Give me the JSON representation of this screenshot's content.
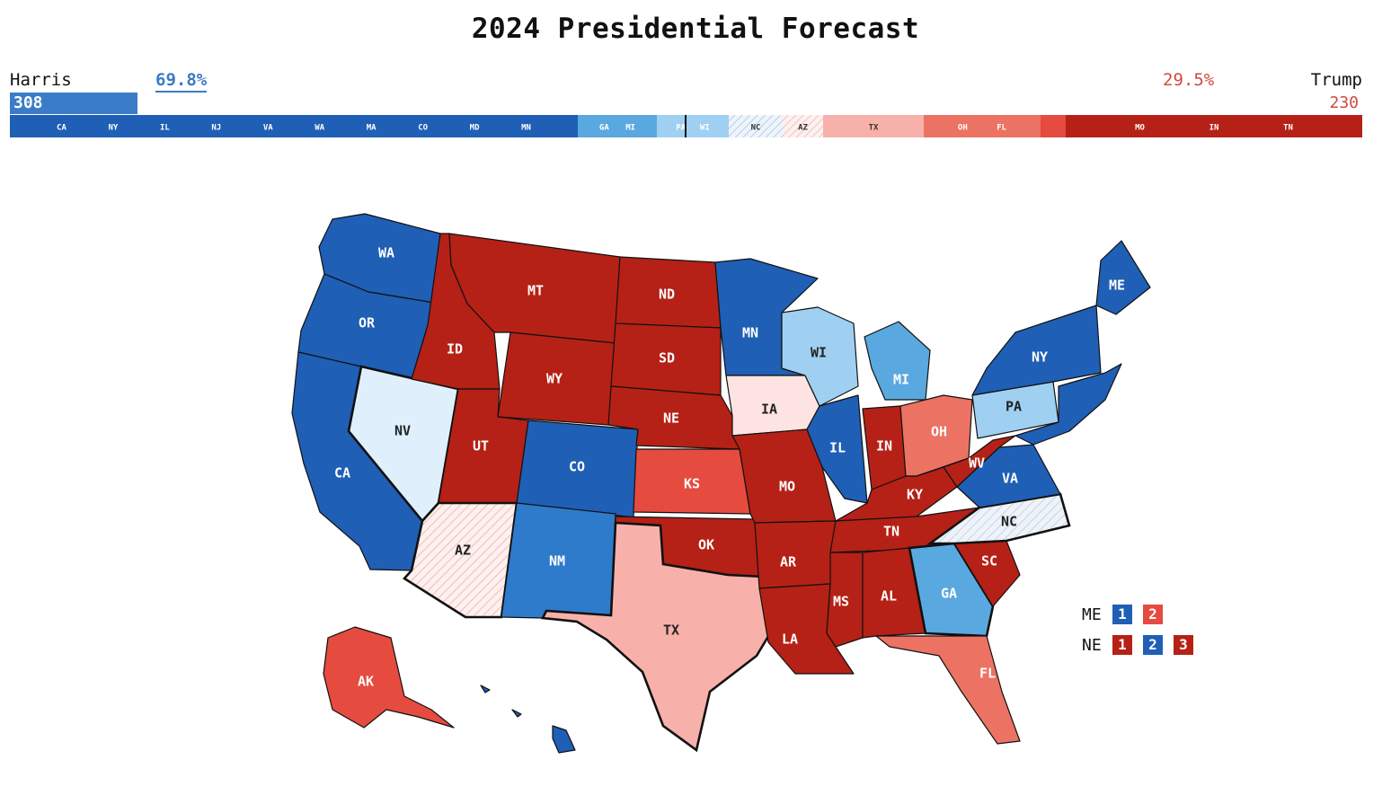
{
  "title": "2024 Presidential Forecast",
  "harris": {
    "name": "Harris",
    "pct": "69.8%",
    "ev": "308"
  },
  "trump": {
    "name": "Trump",
    "pct": "29.5%",
    "ev": "230"
  },
  "colors": {
    "safe_d": "#1f5fb5",
    "likely_d": "#2e7bcc",
    "lean_d": "#5aa8e0",
    "tilt_d": "#9fd0f2",
    "toss_d": "#dff0fc",
    "toss_r": "#fde4e2",
    "lean_r": "#f7b1aa",
    "likely_r": "#ec7264",
    "likely_r2": "#e64b3f",
    "safe_r": "#b52116"
  },
  "ev_strip": [
    {
      "w": 632,
      "c": "safe_d",
      "labels": [
        "CA",
        "NY",
        "IL",
        "NJ",
        "VA",
        "WA",
        "MA",
        "CO",
        "MD",
        "MN"
      ]
    },
    {
      "w": 88,
      "c": "lean_d",
      "labels": [
        "GA",
        "MI"
      ]
    },
    {
      "w": 80,
      "c": "tilt_d",
      "labels": [
        "PA",
        "WI"
      ]
    },
    {
      "w": 60,
      "c": "toss_d",
      "labels": [
        "NC"
      ]
    },
    {
      "w": 45,
      "c": "toss_r",
      "labels": [
        "AZ"
      ]
    },
    {
      "w": 112,
      "c": "lean_r",
      "labels": [
        "TX"
      ]
    },
    {
      "w": 130,
      "c": "likely_r",
      "labels": [
        "OH",
        "FL"
      ]
    },
    {
      "w": 28,
      "c": "likely_r2",
      "labels": []
    },
    {
      "w": 330,
      "c": "safe_r",
      "labels": [
        "MO",
        "IN",
        "TN"
      ]
    }
  ],
  "states": {
    "WA": {
      "rating": "safe_d"
    },
    "OR": {
      "rating": "safe_d"
    },
    "CA": {
      "rating": "safe_d"
    },
    "NV": {
      "rating": "toss_d"
    },
    "ID": {
      "rating": "safe_r"
    },
    "MT": {
      "rating": "safe_r"
    },
    "WY": {
      "rating": "safe_r"
    },
    "UT": {
      "rating": "safe_r"
    },
    "CO": {
      "rating": "safe_d"
    },
    "AZ": {
      "rating": "toss_r"
    },
    "NM": {
      "rating": "likely_d"
    },
    "ND": {
      "rating": "safe_r"
    },
    "SD": {
      "rating": "safe_r"
    },
    "NE": {
      "rating": "safe_r"
    },
    "KS": {
      "rating": "likely_r2"
    },
    "OK": {
      "rating": "safe_r"
    },
    "TX": {
      "rating": "lean_r"
    },
    "MN": {
      "rating": "safe_d"
    },
    "IA": {
      "rating": "toss_r"
    },
    "MO": {
      "rating": "safe_r"
    },
    "AR": {
      "rating": "safe_r"
    },
    "LA": {
      "rating": "safe_r"
    },
    "WI": {
      "rating": "tilt_d"
    },
    "IL": {
      "rating": "safe_d"
    },
    "MI": {
      "rating": "lean_d"
    },
    "IN": {
      "rating": "safe_r"
    },
    "OH": {
      "rating": "likely_r"
    },
    "KY": {
      "rating": "safe_r"
    },
    "TN": {
      "rating": "safe_r"
    },
    "MS": {
      "rating": "safe_r"
    },
    "AL": {
      "rating": "safe_r"
    },
    "GA": {
      "rating": "lean_d"
    },
    "FL": {
      "rating": "likely_r"
    },
    "SC": {
      "rating": "safe_r"
    },
    "NC": {
      "rating": "toss_d"
    },
    "VA": {
      "rating": "safe_d"
    },
    "WV": {
      "rating": "safe_r"
    },
    "PA": {
      "rating": "tilt_d"
    },
    "NY": {
      "rating": "safe_d"
    },
    "ME": {
      "rating": "safe_d"
    },
    "AK": {
      "rating": "likely_r2"
    },
    "HI": {
      "rating": "safe_d"
    }
  },
  "districts": {
    "ME": {
      "label": "ME",
      "items": [
        {
          "n": "1",
          "c": "safe_d"
        },
        {
          "n": "2",
          "c": "likely_r2"
        }
      ]
    },
    "NE": {
      "label": "NE",
      "items": [
        {
          "n": "1",
          "c": "safe_r"
        },
        {
          "n": "2",
          "c": "safe_d"
        },
        {
          "n": "3",
          "c": "safe_r"
        }
      ]
    }
  }
}
